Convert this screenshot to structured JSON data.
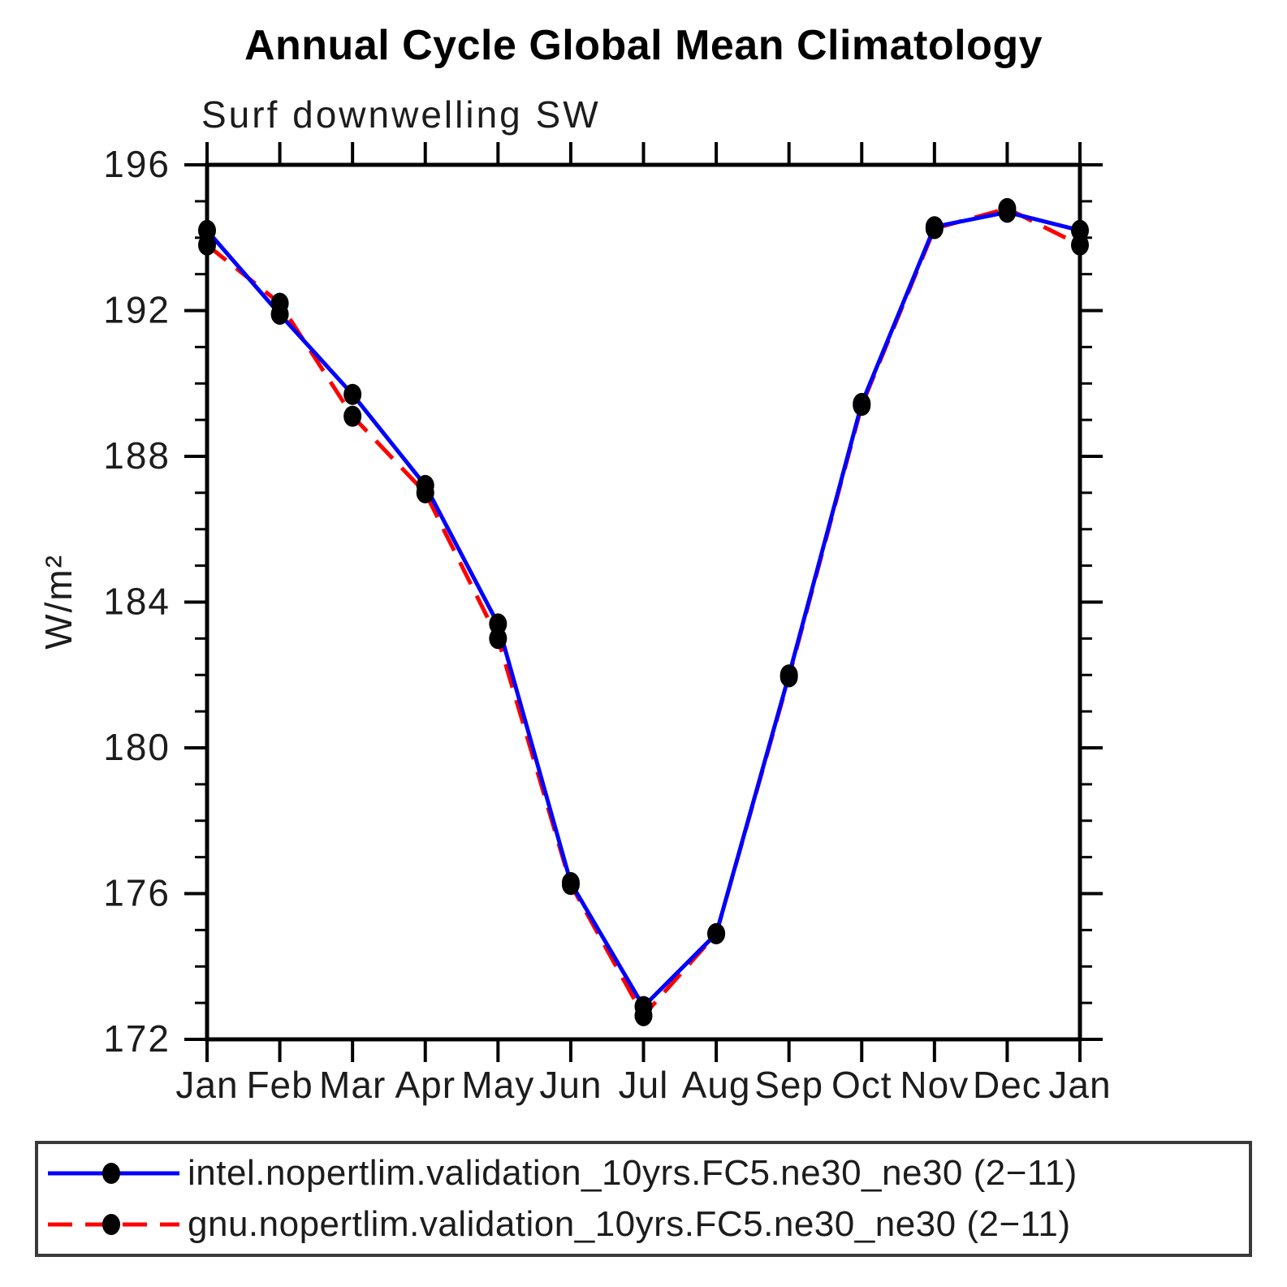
{
  "chart_data": {
    "type": "line",
    "title": "Annual Cycle Global Mean Climatology",
    "subtitle": "Surf downwelling SW",
    "ylabel": "W/m²",
    "xlabel": "",
    "categories": [
      "Jan",
      "Feb",
      "Mar",
      "Apr",
      "May",
      "Jun",
      "Jul",
      "Aug",
      "Sep",
      "Oct",
      "Nov",
      "Dec",
      "Jan"
    ],
    "ylim": [
      172,
      196
    ],
    "yticks": [
      172,
      176,
      180,
      184,
      188,
      192,
      196
    ],
    "minor_ytick_interval": 1,
    "grid": "off",
    "legend_position": "bottom",
    "marker": "filled-black-ellipse",
    "series": [
      {
        "name": "intel.nopertlim.validation_10yrs.FC5.ne30_ne30 (2−11)",
        "short_name": "intel",
        "color": "#0000ff",
        "style": "solid",
        "values": [
          194.2,
          191.9,
          189.7,
          187.2,
          183.4,
          176.3,
          172.9,
          174.9,
          182.0,
          189.45,
          194.3,
          194.7,
          194.2
        ]
      },
      {
        "name": "gnu.nopertlim.validation_10yrs.FC5.ne30_ne30 (2−11)",
        "short_name": "gnu",
        "color": "#ff0000",
        "style": "dashed",
        "values": [
          193.8,
          192.2,
          189.1,
          187.0,
          183.0,
          176.25,
          172.65,
          174.9,
          181.95,
          189.4,
          194.25,
          194.8,
          193.8
        ]
      }
    ]
  }
}
